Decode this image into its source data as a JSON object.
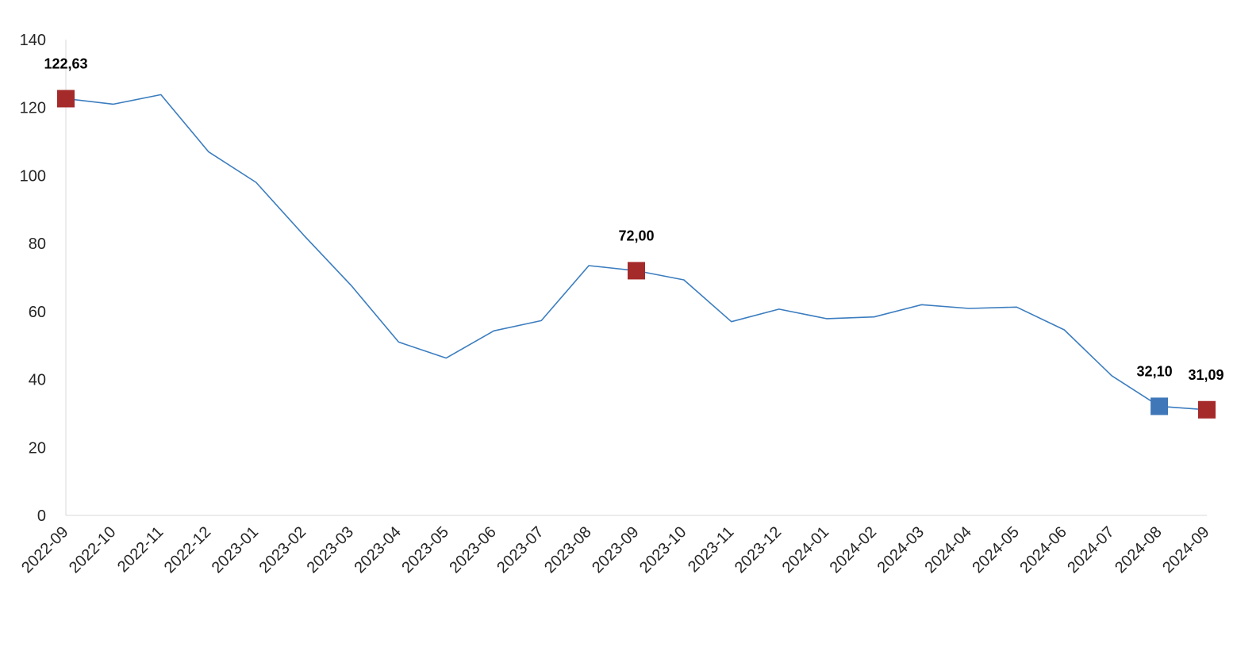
{
  "chart_data": {
    "type": "line",
    "title": "",
    "xlabel": "",
    "ylabel": "",
    "ylim": [
      0,
      140
    ],
    "yticks": [
      0,
      20,
      40,
      60,
      80,
      100,
      120,
      140
    ],
    "grid": false,
    "legend": "none",
    "categories": [
      "2022-09",
      "2022-10",
      "2022-11",
      "2022-12",
      "2023-01",
      "2023-02",
      "2023-03",
      "2023-04",
      "2023-05",
      "2023-06",
      "2023-07",
      "2023-08",
      "2023-09",
      "2023-10",
      "2023-11",
      "2023-12",
      "2024-01",
      "2024-02",
      "2024-03",
      "2024-04",
      "2024-05",
      "2024-06",
      "2024-07",
      "2024-08",
      "2024-09"
    ],
    "series": [
      {
        "values": [
          122.63,
          121.0,
          123.8,
          107.0,
          98.0,
          82.5,
          67.7,
          51.0,
          46.3,
          54.3,
          57.3,
          73.5,
          72.0,
          69.3,
          57.0,
          60.7,
          57.9,
          58.4,
          62.0,
          60.9,
          61.3,
          54.6,
          41.1,
          32.1,
          31.09
        ],
        "color": "#3b7dbf"
      }
    ],
    "highlights": [
      {
        "index": 0,
        "label": "122,63",
        "color": "#a52a2a"
      },
      {
        "index": 12,
        "label": "72,00",
        "color": "#a52a2a"
      },
      {
        "index": 23,
        "label": "32,10",
        "color": "#3f77b9"
      },
      {
        "index": 24,
        "label": "31,09",
        "color": "#a52a2a"
      }
    ]
  }
}
